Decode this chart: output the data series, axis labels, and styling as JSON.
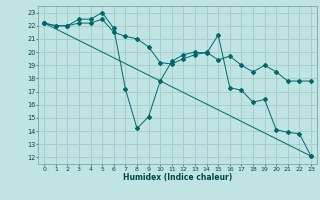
{
  "xlabel": "Humidex (Indice chaleur)",
  "bg_color": "#c0e4e4",
  "grid_color": "#a0cccc",
  "line_color": "#006868",
  "xlim": [
    -0.5,
    23.5
  ],
  "ylim": [
    11.5,
    23.5
  ],
  "xticks": [
    0,
    1,
    2,
    3,
    4,
    5,
    6,
    7,
    8,
    9,
    10,
    11,
    12,
    13,
    14,
    15,
    16,
    17,
    18,
    19,
    20,
    21,
    22,
    23
  ],
  "yticks": [
    12,
    13,
    14,
    15,
    16,
    17,
    18,
    19,
    20,
    21,
    22,
    23
  ],
  "line1_x": [
    0,
    1,
    2,
    3,
    4,
    5,
    6,
    7,
    8,
    9,
    10,
    11,
    12,
    13,
    14,
    15,
    16,
    17,
    18,
    19,
    20,
    21,
    22,
    23
  ],
  "line1_y": [
    22.2,
    22.0,
    22.0,
    22.2,
    22.2,
    22.5,
    21.5,
    21.2,
    21.0,
    20.4,
    19.2,
    19.1,
    19.5,
    19.8,
    20.0,
    19.4,
    19.7,
    19.0,
    18.5,
    19.0,
    18.5,
    17.8,
    17.8,
    17.8
  ],
  "line2_x": [
    0,
    1,
    2,
    3,
    4,
    5,
    6,
    7,
    8,
    9,
    10,
    11,
    12,
    13,
    14,
    15,
    16,
    17,
    18,
    19,
    20,
    21,
    22,
    23
  ],
  "line2_y": [
    22.2,
    22.0,
    22.0,
    22.5,
    22.5,
    23.0,
    21.8,
    17.2,
    14.2,
    15.1,
    17.8,
    19.3,
    19.8,
    20.0,
    19.9,
    21.3,
    17.3,
    17.1,
    16.2,
    16.4,
    14.1,
    13.9,
    13.8,
    12.1
  ],
  "line3_x": [
    0,
    23
  ],
  "line3_y": [
    22.2,
    12.1
  ]
}
